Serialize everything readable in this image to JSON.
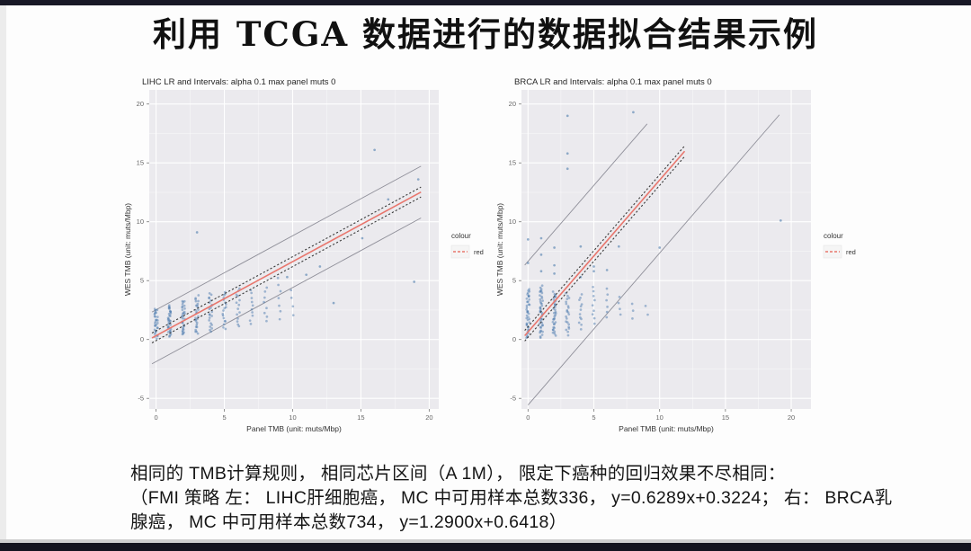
{
  "slide": {
    "title": "利用 TCGA 数据进行的数据拟合结果示例",
    "caption_line1": "相同的 TMB计算规则， 相同芯片区间（A 1M）， 限定下癌种的回归效果不尽相同：",
    "caption_line2": "（FMI 策略 左： LIHC肝细胞癌， MC 中可用样本总数336， y=0.6289x+0.3224； 右： BRCA乳",
    "caption_line3": "腺癌， MC 中可用样本总数734， y=1.2900x+0.6418）"
  },
  "colors": {
    "accent_red": "#e8766d",
    "point_blue": "#3f72a8",
    "panel_bg": "#ebeaee",
    "grid_white": "#ffffff",
    "interval_gray": "#8f8f99",
    "ci_dark": "#3b3b3b",
    "bar_dark": "#181826",
    "tick_text": "#666666",
    "axis_text": "#333333"
  },
  "chart_data": [
    {
      "type": "scatter",
      "title": "LIHC LR and Intervals: alpha 0.1 max panel muts 0",
      "xlabel": "Panel TMB (unit: muts/Mbp)",
      "ylabel": "WES TMB (unit: muts/Mbp)",
      "xlim": [
        -0.5,
        20.7
      ],
      "ylim": [
        -5.9,
        21.2
      ],
      "xticks": [
        0,
        5,
        10,
        15,
        20
      ],
      "yticks": [
        -5,
        0,
        5,
        10,
        15,
        20
      ],
      "grid": true,
      "legend": {
        "title": "colour",
        "entries": [
          {
            "label": "red",
            "color": "#e8766d"
          }
        ],
        "position": "right"
      },
      "fit": {
        "equation": "y=0.6289x+0.3224",
        "slope": 0.6289,
        "intercept": 0.3224,
        "x_range": [
          -0.3,
          19.4
        ]
      },
      "conf_interval": {
        "offset": 0.42,
        "x_range": [
          -0.3,
          19.4
        ]
      },
      "pred_interval": {
        "upper_offset": 2.2,
        "upper_x_range": [
          -0.3,
          19.4
        ],
        "lower_offset": -2.2,
        "lower_x_range": [
          -0.3,
          19.4
        ]
      },
      "strips": [
        {
          "x": 0,
          "y_min": 0.15,
          "y_max": 2.6,
          "n": 30
        },
        {
          "x": 1,
          "y_min": 0.3,
          "y_max": 2.9,
          "n": 32
        },
        {
          "x": 2,
          "y_min": 0.4,
          "y_max": 3.3,
          "n": 30
        },
        {
          "x": 3,
          "y_min": 0.5,
          "y_max": 3.7,
          "n": 26
        },
        {
          "x": 4,
          "y_min": 0.7,
          "y_max": 3.9,
          "n": 22
        },
        {
          "x": 5,
          "y_min": 0.9,
          "y_max": 4.1,
          "n": 18
        },
        {
          "x": 6,
          "y_min": 1.1,
          "y_max": 4.4,
          "n": 14
        },
        {
          "x": 7,
          "y_min": 1.3,
          "y_max": 4.2,
          "n": 10
        },
        {
          "x": 8,
          "y_min": 1.5,
          "y_max": 4.4,
          "n": 8
        },
        {
          "x": 9,
          "y_min": 1.8,
          "y_max": 5.2,
          "n": 7
        },
        {
          "x": 10,
          "y_min": 2.0,
          "y_max": 4.2,
          "n": 4
        }
      ],
      "outliers": [
        [
          3,
          9.1
        ],
        [
          9.6,
          5.3
        ],
        [
          11,
          5.5
        ],
        [
          12,
          6.2
        ],
        [
          13,
          3.1
        ],
        [
          15.1,
          8.6
        ],
        [
          16,
          16.1
        ],
        [
          17,
          11.9
        ],
        [
          19.2,
          13.6
        ],
        [
          18.9,
          4.9
        ]
      ]
    },
    {
      "type": "scatter",
      "title": "BRCA LR and Intervals: alpha 0.1 max panel muts 0",
      "xlabel": "Panel TMB (unit: muts/Mbp)",
      "ylabel": "WES TMB (unit: muts/Mbp)",
      "xlim": [
        -0.5,
        21.5
      ],
      "ylim": [
        -5.9,
        21.2
      ],
      "xticks": [
        0,
        5,
        10,
        15,
        20
      ],
      "yticks": [
        -5,
        0,
        5,
        10,
        15,
        20
      ],
      "grid": true,
      "legend": {
        "title": "colour",
        "entries": [
          {
            "label": "red",
            "color": "#e8766d"
          }
        ],
        "position": "right"
      },
      "fit": {
        "equation": "y=1.2900x+0.6418",
        "slope": 1.29,
        "intercept": 0.6418,
        "x_range": [
          -0.25,
          11.9
        ]
      },
      "conf_interval": {
        "offset": 0.45,
        "x_range": [
          -0.25,
          11.9
        ]
      },
      "pred_interval": {
        "upper_offset": 6.0,
        "upper_x_range": [
          -0.25,
          9.05
        ],
        "lower_offset": -6.2,
        "lower_x_range": [
          0.0,
          19.1
        ]
      },
      "strips": [
        {
          "x": 0,
          "y_min": 0.15,
          "y_max": 4.3,
          "n": 40
        },
        {
          "x": 1,
          "y_min": 0.2,
          "y_max": 4.5,
          "n": 42
        },
        {
          "x": 2,
          "y_min": 0.3,
          "y_max": 4.0,
          "n": 34
        },
        {
          "x": 3,
          "y_min": 0.4,
          "y_max": 3.9,
          "n": 22
        },
        {
          "x": 4,
          "y_min": 0.9,
          "y_max": 3.8,
          "n": 12
        },
        {
          "x": 5,
          "y_min": 1.4,
          "y_max": 4.4,
          "n": 9
        },
        {
          "x": 6,
          "y_min": 1.8,
          "y_max": 4.3,
          "n": 6
        },
        {
          "x": 7,
          "y_min": 2.2,
          "y_max": 3.6,
          "n": 4
        },
        {
          "x": 8,
          "y_min": 1.8,
          "y_max": 3.0,
          "n": 3
        },
        {
          "x": 9,
          "y_min": 2.2,
          "y_max": 2.8,
          "n": 2
        }
      ],
      "outliers": [
        [
          0,
          6.5
        ],
        [
          0,
          8.5
        ],
        [
          1,
          5.8
        ],
        [
          1,
          7.2
        ],
        [
          1,
          8.6
        ],
        [
          2,
          5.6
        ],
        [
          2,
          6.3
        ],
        [
          2,
          7.8
        ],
        [
          3,
          14.5
        ],
        [
          3,
          15.8
        ],
        [
          3,
          19.0
        ],
        [
          4,
          7.9
        ],
        [
          4,
          5.3
        ],
        [
          5,
          6.2
        ],
        [
          5,
          5.8
        ],
        [
          6,
          5.9
        ],
        [
          6.9,
          7.9
        ],
        [
          8,
          19.3
        ],
        [
          10,
          7.8
        ],
        [
          19.2,
          10.1
        ]
      ]
    }
  ]
}
